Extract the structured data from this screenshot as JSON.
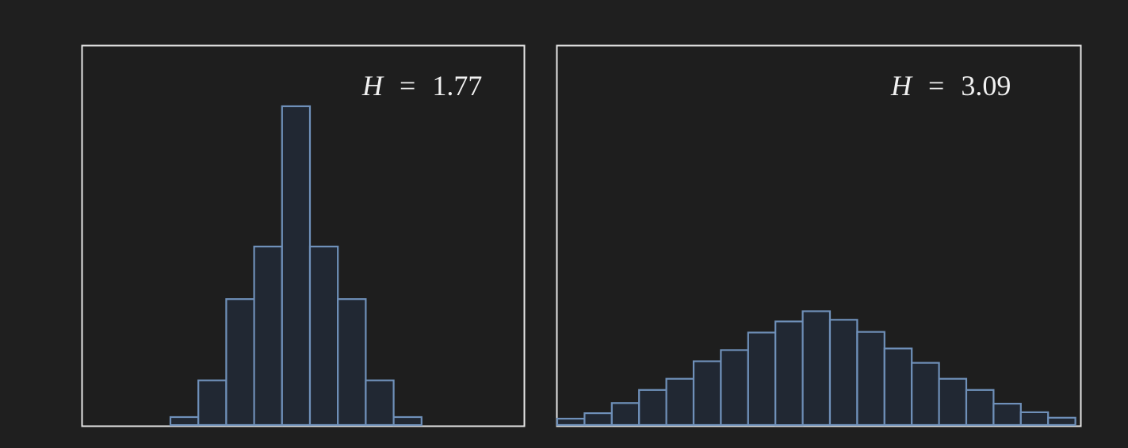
{
  "chart_data": [
    {
      "type": "bar",
      "title": "",
      "xlabel": "",
      "ylabel": "",
      "annotation": {
        "symbol": "H",
        "equals": "=",
        "value": "1.77"
      },
      "grid": false,
      "axes_ticks": false,
      "values": [
        0.025,
        0.14,
        0.395,
        0.56,
        1.0,
        0.56,
        0.395,
        0.14,
        0.025
      ],
      "ylim": [
        0,
        1.0
      ],
      "bar_fill": "#212833",
      "bar_edge": "#6f90b9"
    },
    {
      "type": "bar",
      "title": "",
      "xlabel": "",
      "ylabel": "",
      "annotation": {
        "symbol": "H",
        "equals": "=",
        "value": "3.09"
      },
      "grid": false,
      "axes_ticks": false,
      "values": [
        0.02,
        0.037,
        0.069,
        0.11,
        0.145,
        0.2,
        0.235,
        0.29,
        0.325,
        0.357,
        0.33,
        0.292,
        0.24,
        0.195,
        0.145,
        0.11,
        0.067,
        0.04,
        0.023
      ],
      "ylim": [
        0,
        1.0
      ],
      "bar_fill": "#212833",
      "bar_edge": "#6f90b9"
    }
  ],
  "colors": {
    "background": "#1f1f1f",
    "frame": "#e6e6e6",
    "text": "#f1f1f1"
  }
}
